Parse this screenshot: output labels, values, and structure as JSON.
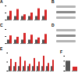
{
  "chart_data": [
    {
      "type": "bar",
      "title": "A",
      "categories": [
        null,
        null,
        null,
        null,
        null,
        null
      ],
      "series": [
        {
          "color": "#555555",
          "values": [
            1,
            1,
            1,
            1,
            1,
            1
          ]
        },
        {
          "color": "#d62728",
          "values": [
            2.5,
            3,
            1.5,
            2,
            3.2,
            2.8
          ]
        }
      ],
      "ylim": [
        0,
        4
      ],
      "yticks": [
        0,
        2,
        4
      ],
      "tick_labels": false
    },
    {
      "type": "bar",
      "title": "C",
      "categories": [
        null,
        null,
        null,
        null,
        null,
        null
      ],
      "series": [
        {
          "color": "#555555",
          "values": [
            1,
            1,
            1,
            1,
            1,
            1
          ]
        },
        {
          "color": "#d62728",
          "values": [
            2.2,
            1.8,
            2.9,
            2.4,
            1.6,
            2.6
          ]
        }
      ],
      "ylim": [
        0,
        4
      ],
      "yticks": [
        0,
        2,
        4
      ],
      "tick_labels": false
    },
    {
      "type": "bar",
      "title": "E",
      "categories": [
        null,
        null,
        null,
        null,
        null,
        null,
        null,
        null,
        null,
        null
      ],
      "series": [
        {
          "color": "#555555",
          "values": [
            1,
            1,
            1,
            1,
            1,
            1,
            1,
            1,
            1,
            1
          ]
        },
        {
          "color": "#d62728",
          "values": [
            2.6,
            1.9,
            3.1,
            2.2,
            1.5,
            2.8,
            2.0,
            3.3,
            1.7,
            2.4
          ]
        }
      ],
      "ylim": [
        0,
        4
      ],
      "yticks": [
        0,
        2,
        4
      ],
      "tick_labels": false
    },
    {
      "type": "bar",
      "title": "F",
      "categories": [
        null,
        null
      ],
      "values": [
        1,
        0.4
      ],
      "colors": [
        "#555555",
        "#d62728"
      ],
      "ylim": [
        0,
        1.5
      ],
      "yticks": [
        0,
        0.5,
        1,
        1.5
      ],
      "tick_labels": false
    }
  ],
  "blots": [
    {
      "label": "B"
    },
    {
      "label": "D"
    }
  ]
}
